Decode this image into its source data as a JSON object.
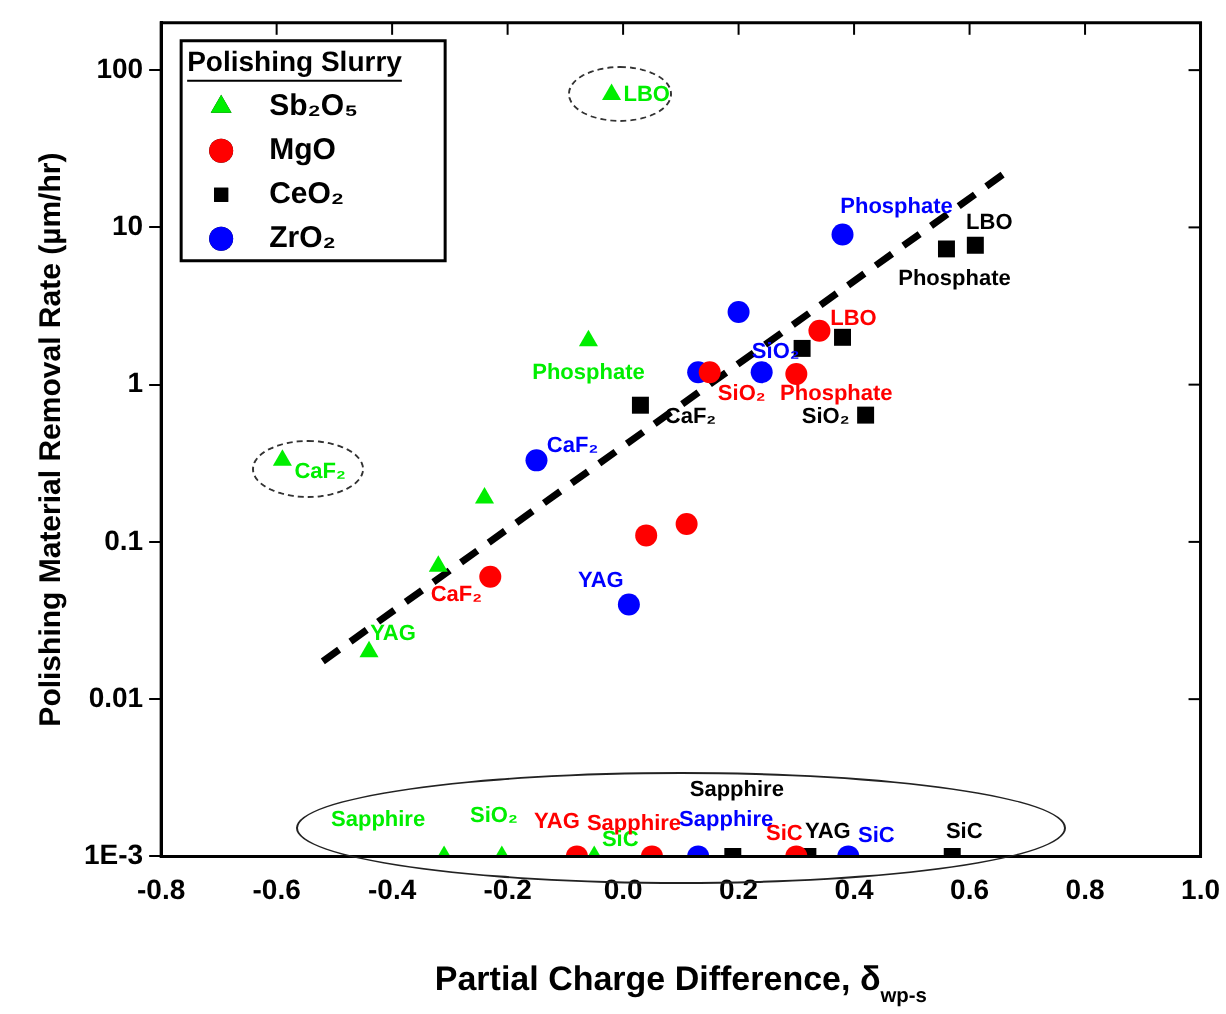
{
  "chart_data": {
    "type": "scatter",
    "xlabel": "Partial Charge Difference, δ$_{wp-s}$",
    "ylabel": "Polishing Material Removal Rate (µm/hr)",
    "legend_title": "Polishing Slurry",
    "legend": "top left",
    "log": "y",
    "grid": false,
    "xlim": [
      -0.8,
      1.0
    ],
    "xticks": [
      -0.8,
      -0.6,
      -0.4,
      -0.2,
      {
        "value": 0,
        "label": "0.0"
      },
      0.2,
      0.4,
      0.6,
      0.8,
      {
        "value": 1,
        "label": "1.0"
      }
    ],
    "ylim": [
      0.001,
      200
    ],
    "yticks": [
      {
        "value": 0.001,
        "label": "1E-3"
      },
      0.01,
      0.1,
      1,
      10,
      100
    ],
    "series": [
      {
        "name": "Sb₂O₅",
        "color": "#00ee00",
        "marker": "triangle",
        "x": [
          -0.02,
          -0.59,
          -0.06,
          -0.24,
          -0.32,
          -0.44,
          -0.31,
          -0.21,
          -0.05
        ],
        "values": [
          70,
          0.33,
          1.9,
          0.19,
          0.07,
          0.02,
          0.001,
          0.001,
          0.001
        ]
      },
      {
        "name": "MgO",
        "color": "#ff0000",
        "marker": "circle",
        "x": [
          0.34,
          0.3,
          0.15,
          0.11,
          0.04,
          -0.23,
          -0.08,
          0.05,
          0.3
        ],
        "values": [
          2.2,
          1.17,
          1.2,
          0.13,
          0.11,
          0.06,
          0.001,
          0.001,
          0.001
        ]
      },
      {
        "name": "CeO₂",
        "color": "#000000",
        "marker": "square",
        "x": [
          0.61,
          0.56,
          0.38,
          0.31,
          0.42,
          0.03,
          0.19,
          0.32,
          0.57
        ],
        "values": [
          7.7,
          7.3,
          2.0,
          1.7,
          0.64,
          0.74,
          0.001,
          0.001,
          0.001
        ]
      },
      {
        "name": "ZrO₂",
        "color": "#0000ff",
        "marker": "circle",
        "x": [
          0.38,
          0.2,
          0.13,
          0.24,
          -0.15,
          0.01,
          0.13,
          0.39
        ],
        "values": [
          9,
          2.9,
          1.2,
          1.2,
          0.33,
          0.04,
          0.001,
          0.001
        ]
      },
      {
        "type": "line",
        "color": "#000000",
        "marker": "none",
        "line_style": "dashed",
        "x": [
          -0.52,
          0.66
        ],
        "values": [
          0.0174,
          22
        ]
      }
    ],
    "annotations": [
      {
        "text": "LBO",
        "x": -0.02,
        "y": 70
      },
      {
        "text": "CaF₂",
        "x": -0.59,
        "y": 0.33
      },
      {
        "text": "Phosphate",
        "x": -0.06,
        "y": 1.9
      },
      {
        "text": "YAG",
        "x": -0.44,
        "y": 0.02
      },
      {
        "text": "Sapphire",
        "x": -0.31,
        "y": 0.001
      },
      {
        "text": "SiO₂",
        "x": -0.21,
        "y": 0.001
      },
      {
        "text": "SiC",
        "x": -0.05,
        "y": 0.001
      },
      {
        "text": "LBO",
        "x": 0.34,
        "y": 2.2
      },
      {
        "text": "Phosphate",
        "x": 0.3,
        "y": 1.17
      },
      {
        "text": "SiO₂",
        "x": 0.15,
        "y": 1.2
      },
      {
        "text": "CaF₂",
        "x": -0.23,
        "y": 0.06
      },
      {
        "text": "YAG",
        "x": -0.08,
        "y": 0.001
      },
      {
        "text": "Sapphire",
        "x": 0.05,
        "y": 0.001
      },
      {
        "text": "SiC",
        "x": 0.3,
        "y": 0.001
      },
      {
        "text": "LBO",
        "x": 0.61,
        "y": 7.7
      },
      {
        "text": "Phosphate",
        "x": 0.56,
        "y": 7.3
      },
      {
        "text": "SiO₂",
        "x": 0.42,
        "y": 0.64
      },
      {
        "text": "CaF₂",
        "x": 0.03,
        "y": 0.74
      },
      {
        "text": "Sapphire",
        "x": 0.19,
        "y": 0.001
      },
      {
        "text": "YAG",
        "x": 0.32,
        "y": 0.001
      },
      {
        "text": "SiC",
        "x": 0.57,
        "y": 0.001
      },
      {
        "text": "Phosphate",
        "x": 0.38,
        "y": 9
      },
      {
        "text": "SiO₂",
        "x": 0.24,
        "y": 1.2
      },
      {
        "text": "CaF₂",
        "x": -0.15,
        "y": 0.33
      },
      {
        "text": "YAG",
        "x": 0.01,
        "y": 0.04
      },
      {
        "text": "Sapphire",
        "x": 0.13,
        "y": 0.001
      },
      {
        "text": "SiC",
        "x": 0.39,
        "y": 0.001
      }
    ]
  }
}
